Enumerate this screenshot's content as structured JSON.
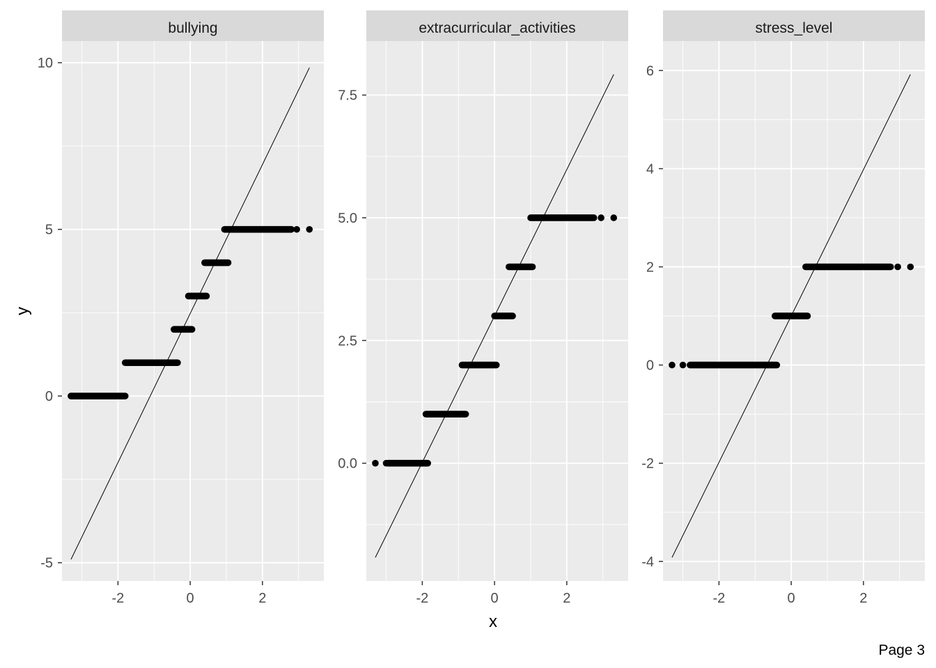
{
  "footer_text": "Page 3",
  "chart_data": {
    "type": "scatter",
    "facet_layout": "3 panels in one row, free y scales",
    "xlabel": "x",
    "ylabel": "y",
    "xlim": [
      -3.55,
      3.7
    ],
    "xticks": [
      -2,
      0,
      2
    ],
    "grid": true,
    "background": "#EBEBEB",
    "point_color": "#000000",
    "line_color": "#000000",
    "panels": [
      {
        "title": "bullying",
        "ylim": [
          -5.55,
          10.65
        ],
        "yticks": [
          -5,
          0,
          5,
          10
        ],
        "reference_line": {
          "x": [
            -3.3,
            3.3
          ],
          "y": [
            -4.9,
            9.85
          ]
        },
        "point_segments": [
          {
            "y": 0,
            "x_start": -3.3,
            "x_end": -1.8,
            "isolated_x": [
              -3.3,
              -3.0
            ]
          },
          {
            "y": 1,
            "x_start": -1.8,
            "x_end": -0.35,
            "isolated_x": []
          },
          {
            "y": 2,
            "x_start": -0.45,
            "x_end": 0.05,
            "isolated_x": []
          },
          {
            "y": 3,
            "x_start": -0.05,
            "x_end": 0.45,
            "isolated_x": []
          },
          {
            "y": 4,
            "x_start": 0.4,
            "x_end": 1.05,
            "isolated_x": []
          },
          {
            "y": 5,
            "x_start": 0.95,
            "x_end": 2.8,
            "isolated_x": [
              2.95,
              3.3
            ]
          }
        ]
      },
      {
        "title": "extracurricular_activities",
        "ylim": [
          -2.4,
          8.6
        ],
        "yticks": [
          0.0,
          2.5,
          5.0,
          7.5
        ],
        "reference_line": {
          "x": [
            -3.3,
            3.3
          ],
          "y": [
            -1.92,
            7.92
          ]
        },
        "point_segments": [
          {
            "y": 0,
            "x_start": -2.95,
            "x_end": -1.85,
            "isolated_x": [
              -3.3,
              -3.0
            ]
          },
          {
            "y": 1,
            "x_start": -1.9,
            "x_end": -0.8,
            "isolated_x": []
          },
          {
            "y": 2,
            "x_start": -0.9,
            "x_end": 0.05,
            "isolated_x": []
          },
          {
            "y": 3,
            "x_start": 0.0,
            "x_end": 0.5,
            "isolated_x": []
          },
          {
            "y": 4,
            "x_start": 0.4,
            "x_end": 1.05,
            "isolated_x": []
          },
          {
            "y": 5,
            "x_start": 1.0,
            "x_end": 2.75,
            "isolated_x": [
              2.95,
              3.3
            ]
          }
        ]
      },
      {
        "title": "stress_level",
        "ylim": [
          -4.4,
          6.6
        ],
        "yticks": [
          -4,
          -2,
          0,
          2,
          4,
          6
        ],
        "reference_line": {
          "x": [
            -3.3,
            3.3
          ],
          "y": [
            -3.92,
            5.92
          ]
        },
        "point_segments": [
          {
            "y": 0,
            "x_start": -2.8,
            "x_end": -0.4,
            "isolated_x": [
              -3.3,
              -3.0
            ]
          },
          {
            "y": 1,
            "x_start": -0.45,
            "x_end": 0.45,
            "isolated_x": []
          },
          {
            "y": 2,
            "x_start": 0.4,
            "x_end": 2.75,
            "isolated_x": [
              2.95,
              3.3
            ]
          }
        ]
      }
    ]
  }
}
